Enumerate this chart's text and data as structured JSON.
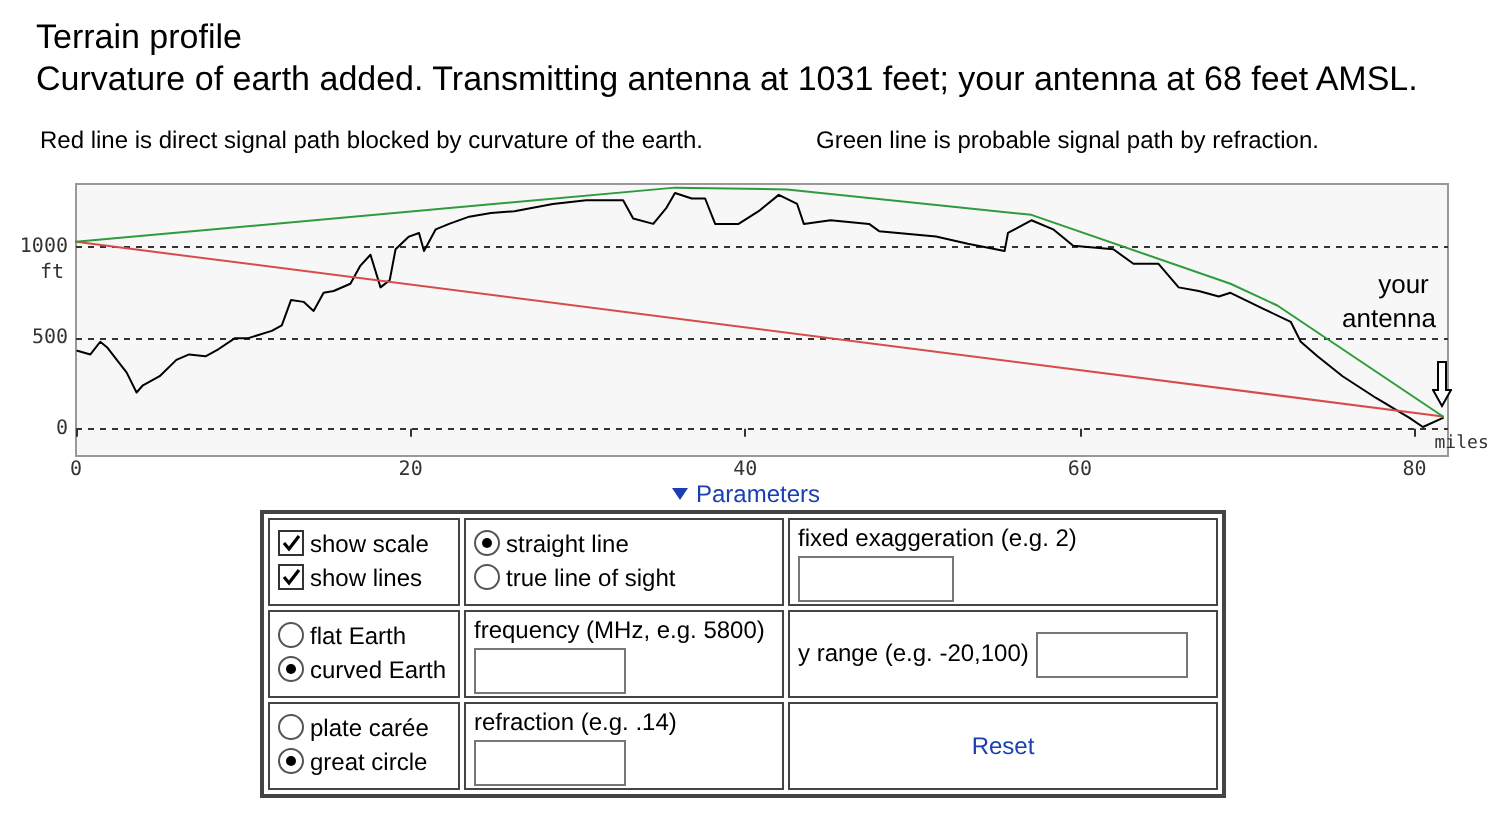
{
  "chart_data": [
    {
      "type": "line",
      "title": "Terrain profile",
      "subtitle": "Curvature of earth added. Transmitting antenna at 1031 feet; your antenna at 68 feet AMSL.",
      "xlabel": "miles",
      "ylabel": "ft",
      "annotations": [
        "Red line is direct signal path blocked by curvature of the earth.",
        "Green line is probable signal path by refraction.",
        "your antenna"
      ],
      "xlim": [
        0,
        82
      ],
      "xticks": [
        0,
        20,
        40,
        60,
        80
      ],
      "ylim": [
        -150,
        1350
      ],
      "yticks": [
        0,
        500,
        1000
      ],
      "grid": "y",
      "marker": "none",
      "line_style": "solid",
      "series": [
        {
          "color": "#000000",
          "x": [
            0.08,
            0.86,
            1.45,
            1.85,
            2.44,
            3.03,
            3.62,
            4.0,
            5.0,
            6.0,
            6.76,
            7.74,
            8.53,
            9.5,
            10.3,
            11.7,
            12.3,
            12.85,
            13.6,
            14.2,
            14.8,
            15.4,
            16.4,
            17.0,
            17.6,
            18.2,
            18.75,
            19.1,
            19.9,
            20.5,
            20.8,
            21.5,
            22.3,
            23.5,
            24.8,
            26.2,
            28.5,
            30.5,
            32.7,
            33.3,
            34.5,
            35.3,
            35.8,
            36.8,
            37.6,
            38.2,
            39.6,
            40.8,
            42.0,
            43.1,
            43.5,
            45.1,
            47.4,
            48.0,
            51.4,
            53.3,
            55.5,
            55.7,
            57.1,
            58.4,
            59.6,
            62.0,
            63.2,
            64.7,
            65.9,
            67.1,
            68.3,
            69.0,
            71.0,
            72.6,
            73.2,
            74.2,
            75.7,
            77.7,
            79.7,
            80.5,
            81.7
          ],
          "values": [
            430,
            410,
            480,
            450,
            380,
            310,
            200,
            240,
            290,
            380,
            410,
            400,
            440,
            500,
            500,
            540,
            570,
            710,
            700,
            650,
            750,
            760,
            800,
            900,
            960,
            780,
            820,
            990,
            1060,
            1080,
            980,
            1100,
            1130,
            1170,
            1190,
            1200,
            1240,
            1260,
            1260,
            1160,
            1130,
            1220,
            1300,
            1270,
            1270,
            1130,
            1130,
            1200,
            1290,
            1240,
            1130,
            1150,
            1130,
            1090,
            1060,
            1020,
            980,
            1080,
            1150,
            1100,
            1010,
            990,
            910,
            910,
            780,
            760,
            730,
            750,
            660,
            590,
            480,
            400,
            290,
            170,
            60,
            10,
            60
          ]
        },
        {
          "color": "#d94a4a",
          "x": [
            0,
            81.7
          ],
          "values": [
            1031,
            68
          ]
        },
        {
          "color": "#2e9b3c",
          "x": [
            0,
            35.8,
            42.5,
            57.1,
            69.0,
            71.8,
            81.7
          ],
          "values": [
            1031,
            1330,
            1320,
            1180,
            800,
            680,
            68
          ]
        }
      ]
    },
    {
      "type": "other",
      "annotations": [
        "Parameters",
        "show scale",
        "show lines",
        "straight line",
        "true line of sight",
        "fixed exaggeration (e.g. 2)",
        "flat Earth",
        "curved Earth",
        "frequency (MHz, e.g. 5800)",
        "y range (e.g. -20,100)",
        "plate carée",
        "great circle",
        "refraction (e.g. .14)",
        "Reset"
      ]
    }
  ]
}
